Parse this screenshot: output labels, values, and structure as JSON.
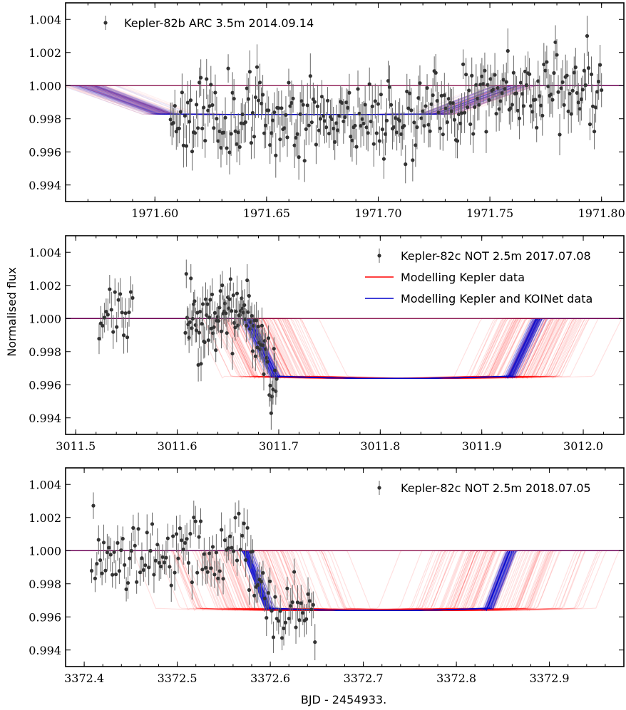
{
  "figure": {
    "ylabel": "Normalised flux",
    "xlabel": "BJD - 2454933."
  },
  "colors": {
    "data": "#333333",
    "kepler_model": "#ff0000",
    "combined_model": "#0000cc",
    "baseline": "#800040"
  },
  "chart_data": [
    {
      "type": "line",
      "xlim": [
        1971.56,
        1971.81
      ],
      "ylim": [
        0.993,
        1.005
      ],
      "xticks": [
        1971.6,
        1971.65,
        1971.7,
        1971.75,
        1971.8
      ],
      "xtick_labels": [
        "1971.60",
        "1971.65",
        "1971.70",
        "1971.75",
        "1971.80"
      ],
      "yticks": [
        0.994,
        0.996,
        0.998,
        1.0,
        1.002,
        1.004
      ],
      "ytick_labels": [
        "0.994",
        "0.996",
        "0.998",
        "1.000",
        "1.002",
        "1.004"
      ],
      "legend": [
        {
          "label": "Kepler-82b ARC 3.5m 2014.09.14",
          "kind": "errorbar"
        }
      ],
      "legend_position": "top-left",
      "model": {
        "baseline": 1.0,
        "depth": 0.00175,
        "t1": 1971.58,
        "t2": 1971.615,
        "t3": 1971.735,
        "t4": 1971.755
      },
      "models": {
        "kepler_mid_range": [
          1971.66,
          1971.672
        ],
        "combined_mid_range": [
          1971.661,
          1971.67
        ]
      },
      "data": {
        "x_range": [
          1971.607,
          1971.8
        ],
        "n": 300,
        "err": 0.0011,
        "scatter": 0.0012,
        "seed": 11
      },
      "series": [
        {
          "name": "Kepler-82b ARC 3.5m 2014.09.14",
          "kind": "errorbar",
          "color": "#333333"
        }
      ]
    },
    {
      "type": "line",
      "xlim": [
        3011.49,
        3012.04
      ],
      "ylim": [
        0.993,
        1.005
      ],
      "xticks": [
        3011.5,
        3011.6,
        3011.7,
        3011.8,
        3011.9,
        3012.0
      ],
      "xtick_labels": [
        "3011.5",
        "3011.6",
        "3011.7",
        "3011.8",
        "3011.9",
        "3012.0"
      ],
      "yticks": [
        0.994,
        0.996,
        0.998,
        1.0,
        1.002,
        1.004
      ],
      "ytick_labels": [
        "0.994",
        "0.996",
        "0.998",
        "1.000",
        "1.002",
        "1.004"
      ],
      "legend": [
        {
          "label": "Kepler-82c NOT 2.5m 2017.07.08",
          "kind": "errorbar"
        },
        {
          "label": "Modelling Kepler data",
          "kind": "line"
        },
        {
          "label": "Modelling Kepler and KOINet data",
          "kind": "line"
        }
      ],
      "legend_position": "top-right",
      "model": {
        "baseline": 1.0,
        "depth": 0.00362,
        "t1": 3011.672,
        "t2": 3011.7,
        "t3": 3011.93,
        "t4": 3011.955
      },
      "models": {
        "kepler_mid_range": [
          3011.77,
          3011.86
        ],
        "combined_mid_range": [
          3011.808,
          3011.818
        ]
      },
      "data": {
        "segments": [
          [
            3011.523,
            3011.556,
            20
          ],
          [
            3011.608,
            3011.698,
            100
          ]
        ],
        "err": 0.0009,
        "scatter": 0.0011,
        "seed": 23
      },
      "series": [
        {
          "name": "Kepler-82c NOT 2.5m 2017.07.08",
          "kind": "errorbar",
          "color": "#333333"
        },
        {
          "name": "Modelling Kepler data",
          "kind": "model",
          "color": "#ff0000"
        },
        {
          "name": "Modelling Kepler and KOINet data",
          "kind": "model",
          "color": "#0000cc"
        }
      ]
    },
    {
      "type": "line",
      "xlim": [
        3372.38,
        3372.98
      ],
      "ylim": [
        0.993,
        1.005
      ],
      "xticks": [
        3372.4,
        3372.5,
        3372.6,
        3372.7,
        3372.8,
        3372.9
      ],
      "xtick_labels": [
        "3372.4",
        "3372.5",
        "3372.6",
        "3372.7",
        "3372.8",
        "3372.9"
      ],
      "yticks": [
        0.994,
        0.996,
        0.998,
        1.0,
        1.002,
        1.004
      ],
      "ytick_labels": [
        "0.994",
        "0.996",
        "0.998",
        "1.000",
        "1.002",
        "1.004"
      ],
      "legend": [
        {
          "label": "Kepler-82c NOT 2.5m 2018.07.05",
          "kind": "errorbar"
        }
      ],
      "legend_position": "top-right",
      "model": {
        "baseline": 1.0,
        "depth": 0.00362,
        "t1": 3372.575,
        "t2": 3372.6,
        "t3": 3372.835,
        "t4": 3372.855
      },
      "models": {
        "kepler_mid_range": [
          3372.63,
          3372.8
        ],
        "combined_mid_range": [
          3372.711,
          3372.721
        ]
      },
      "data": {
        "x_range": [
          3372.408,
          3372.648
        ],
        "n": 130,
        "err": 0.0009,
        "scatter": 0.0011,
        "seed": 37
      },
      "series": [
        {
          "name": "Kepler-82c NOT 2.5m 2018.07.05",
          "kind": "errorbar",
          "color": "#333333"
        }
      ]
    }
  ]
}
